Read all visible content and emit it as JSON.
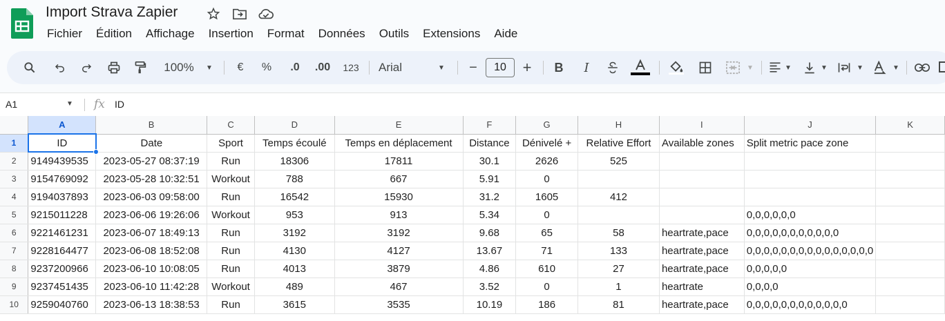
{
  "app": {
    "title": "Import Strava Zapier"
  },
  "menu": [
    "Fichier",
    "Édition",
    "Affichage",
    "Insertion",
    "Format",
    "Données",
    "Outils",
    "Extensions",
    "Aide"
  ],
  "toolbar": {
    "zoom": "100%",
    "currency": "€",
    "percent": "%",
    "dec_less": ".0",
    "dec_more": ".00",
    "number_format": "123",
    "font": "Arial",
    "font_size": "10",
    "minus": "−",
    "plus": "+",
    "bold": "B",
    "italic": "I"
  },
  "formula": {
    "cell_ref": "A1",
    "fx": "fx",
    "value": "ID"
  },
  "grid": {
    "columns": [
      "A",
      "B",
      "C",
      "D",
      "E",
      "F",
      "G",
      "H",
      "I",
      "J",
      "K"
    ],
    "row_numbers": [
      "1",
      "2",
      "3",
      "4",
      "5",
      "6",
      "7",
      "8",
      "9",
      "10"
    ],
    "header_row": [
      "ID",
      "Date",
      "Sport",
      "Temps écoulé",
      "Temps en déplacement",
      "Distance",
      "Dénivelé +",
      "Relative Effort",
      "Available zones",
      "Split metric pace zone",
      ""
    ],
    "rows": [
      [
        "9149439535",
        "2023-05-27 08:37:19",
        "Run",
        "18306",
        "17811",
        "30.1",
        "2626",
        "525",
        "",
        "",
        ""
      ],
      [
        "9154769092",
        "2023-05-28 10:32:51",
        "Workout",
        "788",
        "667",
        "5.91",
        "0",
        "",
        "",
        "",
        ""
      ],
      [
        "9194037893",
        "2023-06-03 09:58:00",
        "Run",
        "16542",
        "15930",
        "31.2",
        "1605",
        "412",
        "",
        "",
        ""
      ],
      [
        "9215011228",
        "2023-06-06 19:26:06",
        "Workout",
        "953",
        "913",
        "5.34",
        "0",
        "",
        "",
        "0,0,0,0,0,0",
        ""
      ],
      [
        "9221461231",
        "2023-06-07 18:49:13",
        "Run",
        "3192",
        "3192",
        "9.68",
        "65",
        "58",
        "heartrate,pace",
        "0,0,0,0,0,0,0,0,0,0,0",
        ""
      ],
      [
        "9228164477",
        "2023-06-08 18:52:08",
        "Run",
        "4130",
        "4127",
        "13.67",
        "71",
        "133",
        "heartrate,pace",
        "0,0,0,0,0,0,0,0,0,0,0,0,0,0,0",
        ""
      ],
      [
        "9237200966",
        "2023-06-10 10:08:05",
        "Run",
        "4013",
        "3879",
        "4.86",
        "610",
        "27",
        "heartrate,pace",
        "0,0,0,0,0",
        ""
      ],
      [
        "9237451435",
        "2023-06-10 11:42:28",
        "Workout",
        "489",
        "467",
        "3.52",
        "0",
        "1",
        "heartrate",
        "0,0,0,0",
        ""
      ],
      [
        "9259040760",
        "2023-06-13 18:38:53",
        "Run",
        "3615",
        "3535",
        "10.19",
        "186",
        "81",
        "heartrate,pace",
        "0,0,0,0,0,0,0,0,0,0,0,0",
        ""
      ]
    ]
  },
  "icons": [
    "sheets-logo-icon",
    "star-icon",
    "move-folder-icon",
    "cloud-saved-icon",
    "search-icon",
    "undo-icon",
    "redo-icon",
    "print-icon",
    "paint-format-icon",
    "text-color-icon",
    "fill-color-icon",
    "borders-icon",
    "merge-icon",
    "align-icon",
    "valign-icon",
    "wrap-icon",
    "rotate-icon",
    "link-icon"
  ],
  "colors": {
    "sheets_green": "#0f9d58",
    "selection_blue": "#1a73e8",
    "toolbar_bg": "#edf2fa"
  }
}
